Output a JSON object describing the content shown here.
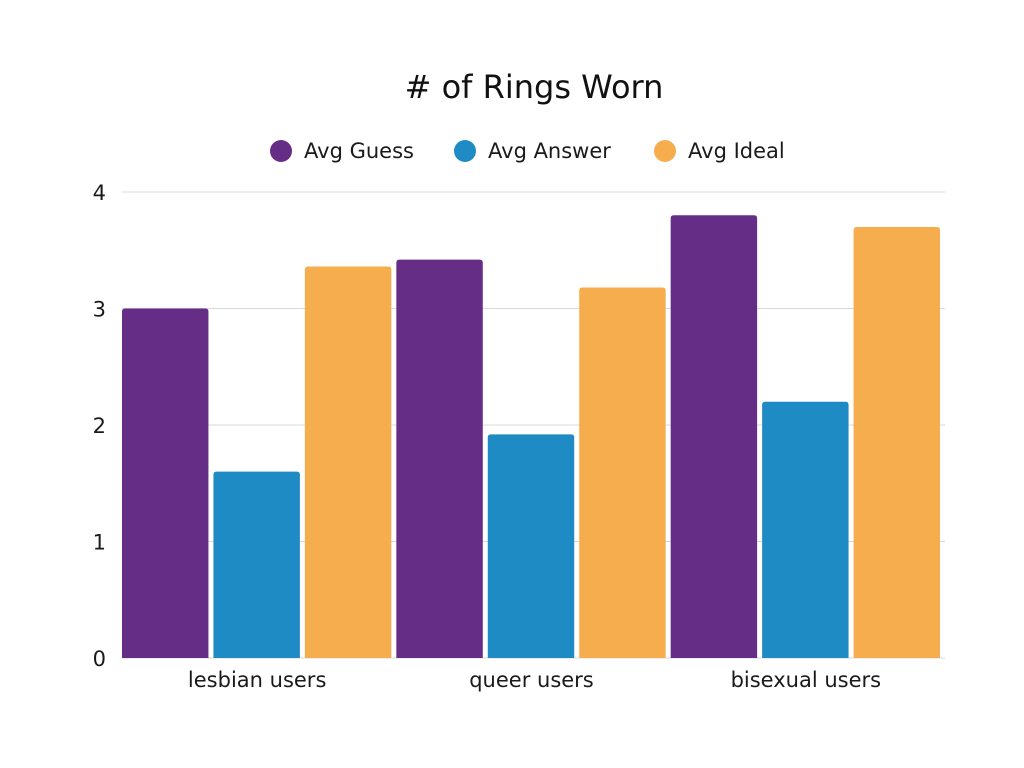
{
  "chart_data": {
    "type": "bar",
    "title": "# of Rings Worn",
    "xlabel": "",
    "ylabel": "",
    "categories": [
      "lesbian users",
      "queer users",
      "bisexual users"
    ],
    "series": [
      {
        "name": "Avg Guess",
        "values": [
          3.0,
          3.42,
          3.8
        ],
        "color": "#662d87"
      },
      {
        "name": "Avg Answer",
        "values": [
          1.6,
          1.92,
          2.2
        ],
        "color": "#1f8bc4"
      },
      {
        "name": "Avg Ideal",
        "values": [
          3.36,
          3.18,
          3.7
        ],
        "color": "#f6ad4e"
      }
    ],
    "ylim": [
      0,
      4
    ],
    "yticks": [
      "0",
      "1",
      "2",
      "3",
      "4"
    ],
    "grid": true,
    "legend_position": "top-center"
  }
}
